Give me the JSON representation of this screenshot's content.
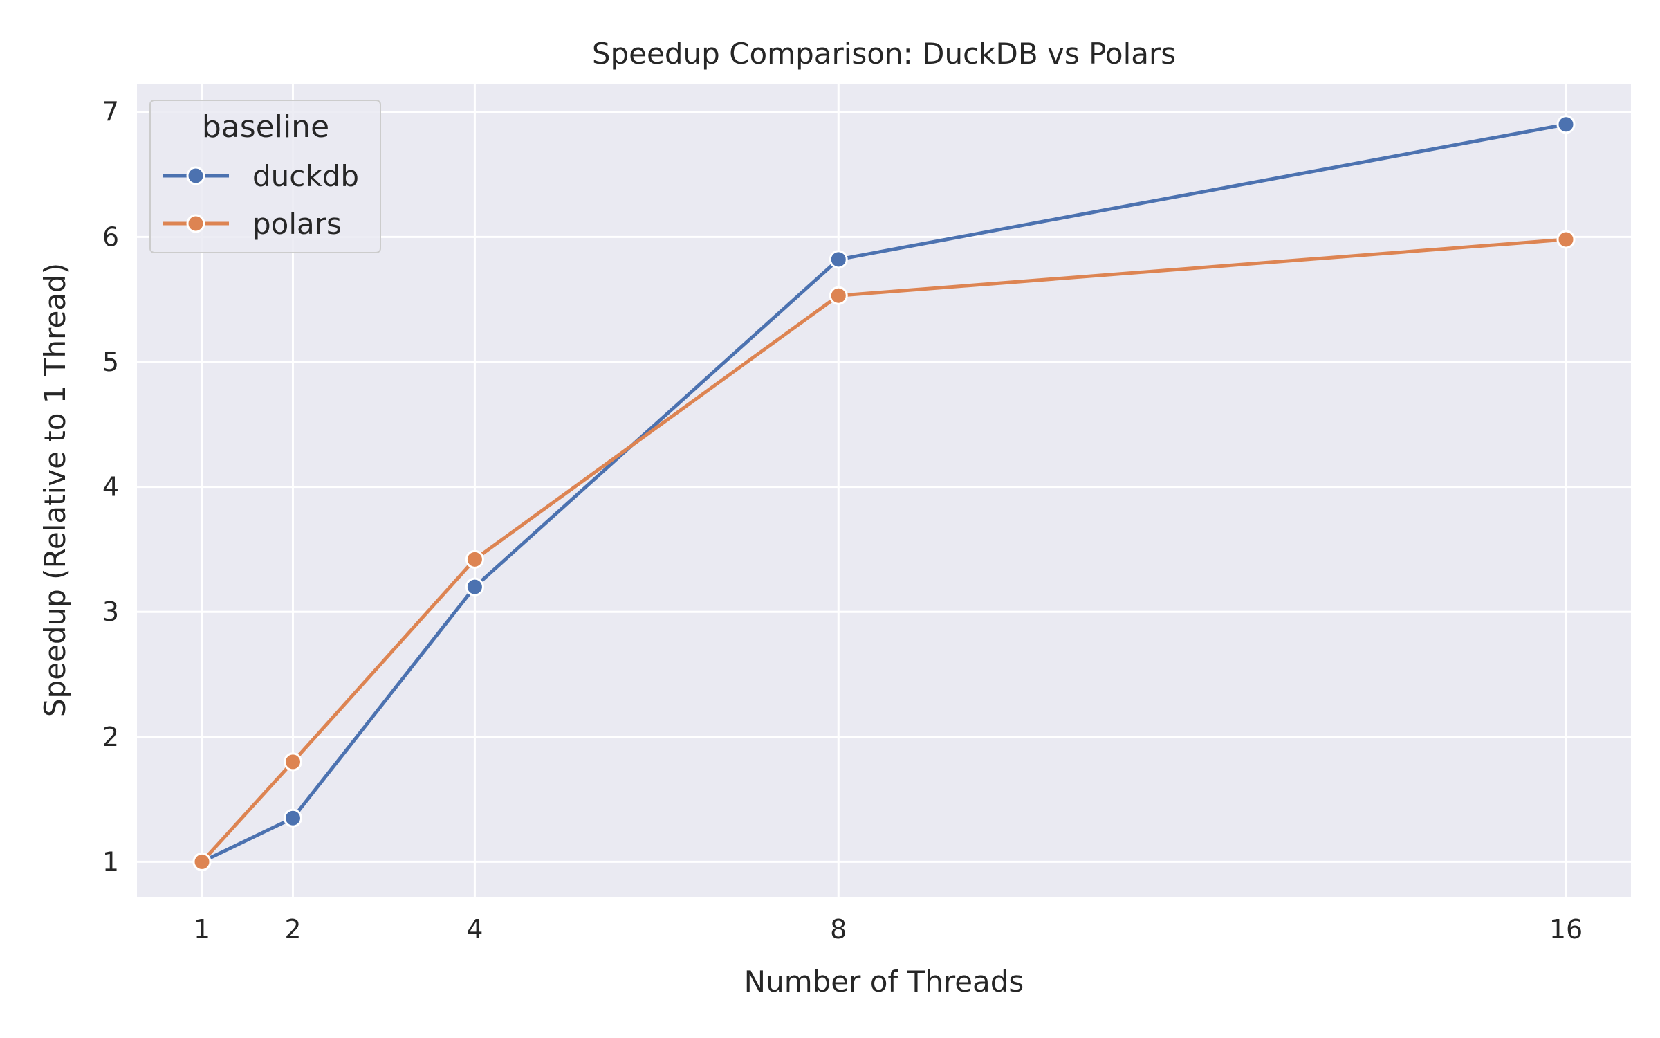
{
  "chart_data": {
    "type": "line",
    "title": "Speedup Comparison: DuckDB vs Polars",
    "xlabel": "Number of Threads",
    "ylabel": "Speedup (Relative to 1 Thread)",
    "x": [
      1,
      2,
      4,
      8,
      16
    ],
    "xlim": [
      0.285,
      16.715
    ],
    "ylim": [
      0.72,
      7.22
    ],
    "xticks": [
      1,
      2,
      4,
      8,
      16
    ],
    "yticks": [
      1,
      2,
      3,
      4,
      5,
      6,
      7
    ],
    "grid": true,
    "legend": {
      "title": "baseline",
      "placement": "top-left"
    },
    "series": [
      {
        "name": "duckdb",
        "color": "#4c72b0",
        "values": [
          1.0,
          1.35,
          3.2,
          5.82,
          6.9
        ]
      },
      {
        "name": "polars",
        "color": "#dd8452",
        "values": [
          1.0,
          1.8,
          3.42,
          5.53,
          5.98
        ]
      }
    ],
    "colors": {
      "plot_bg": "#eaeaf2",
      "grid": "#ffffff",
      "text": "#262626"
    }
  }
}
